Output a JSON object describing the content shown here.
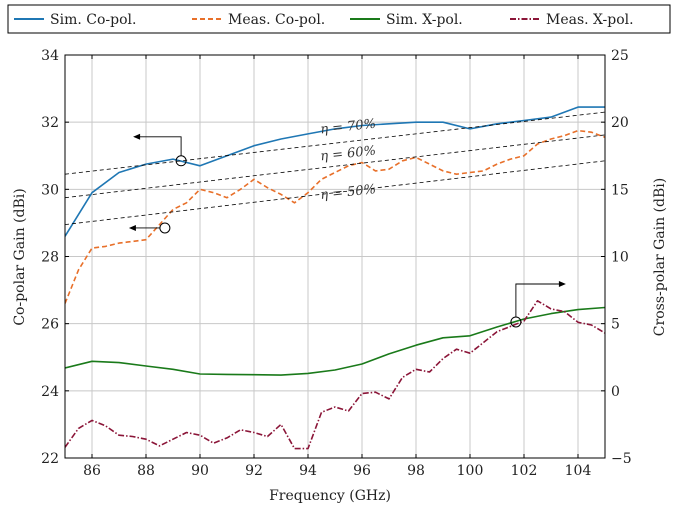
{
  "chart_data": {
    "type": "line",
    "xlabel": "Frequency (GHz)",
    "ylabel_left": "Co-polar Gain (dBi)",
    "ylabel_right": "Cross-polar Gain (dBi)",
    "xlim": [
      85,
      105
    ],
    "ylim_left": [
      22,
      34
    ],
    "ylim_right": [
      -5,
      25
    ],
    "x_ticks": [
      "86",
      "88",
      "90",
      "92",
      "94",
      "96",
      "98",
      "100",
      "102",
      "104"
    ],
    "y_left_ticks": [
      "22",
      "24",
      "26",
      "28",
      "30",
      "32",
      "34"
    ],
    "y_right_ticks": [
      "−5",
      "0",
      "5",
      "10",
      "15",
      "20",
      "25"
    ],
    "grid": true,
    "legend_position": "top",
    "series": [
      {
        "name": "Sim. Co-pol.",
        "axis": "left",
        "color": "#1f77b4",
        "dash": "solid",
        "x": [
          85,
          86,
          87,
          88,
          89,
          90,
          91,
          92,
          93,
          94,
          95,
          96,
          97,
          98,
          99,
          100,
          101,
          102,
          103,
          104,
          105
        ],
        "y": [
          28.6,
          29.9,
          30.5,
          30.75,
          30.9,
          30.7,
          31.0,
          31.3,
          31.5,
          31.65,
          31.8,
          31.9,
          31.95,
          32.0,
          32.0,
          31.8,
          31.95,
          32.05,
          32.15,
          32.45,
          32.45
        ]
      },
      {
        "name": "Meas. Co-pol.",
        "axis": "left",
        "color": "#e8702a",
        "dash": "dashed",
        "x": [
          85,
          85.5,
          86,
          86.5,
          87,
          87.5,
          88,
          88.5,
          89,
          89.5,
          90,
          90.5,
          91,
          91.5,
          92,
          92.5,
          93,
          93.5,
          94,
          94.5,
          95,
          95.5,
          96,
          96.5,
          97,
          97.5,
          98,
          98.5,
          99,
          99.5,
          100,
          100.5,
          101,
          101.5,
          102,
          102.5,
          103,
          103.5,
          104,
          104.5,
          105
        ],
        "y": [
          26.6,
          27.6,
          28.25,
          28.3,
          28.4,
          28.45,
          28.5,
          28.95,
          29.4,
          29.6,
          30.0,
          29.9,
          29.75,
          30.0,
          30.3,
          30.05,
          29.85,
          29.6,
          29.9,
          30.3,
          30.5,
          30.7,
          30.8,
          30.55,
          30.6,
          30.85,
          30.95,
          30.75,
          30.55,
          30.45,
          30.5,
          30.55,
          30.75,
          30.9,
          31.0,
          31.35,
          31.5,
          31.6,
          31.75,
          31.7,
          31.55
        ]
      },
      {
        "name": "Sim. X-pol.",
        "axis": "right",
        "color": "#1a7a1a",
        "dash": "solid",
        "x": [
          85,
          86,
          87,
          88,
          89,
          90,
          91,
          92,
          93,
          94,
          95,
          96,
          97,
          98,
          99,
          100,
          101,
          102,
          103,
          104,
          105
        ],
        "y": [
          1.7,
          2.2,
          2.1,
          1.85,
          1.6,
          1.25,
          1.22,
          1.2,
          1.17,
          1.3,
          1.55,
          2.0,
          2.75,
          3.4,
          3.95,
          4.1,
          4.75,
          5.35,
          5.75,
          6.05,
          6.2
        ]
      },
      {
        "name": "Meas. X-pol.",
        "axis": "right",
        "color": "#8b1538",
        "dash": "dashdot",
        "x": [
          85,
          85.5,
          86,
          86.5,
          87,
          87.5,
          88,
          88.5,
          89,
          89.5,
          90,
          90.5,
          91,
          91.5,
          92,
          92.5,
          93,
          93.5,
          94,
          94.5,
          95,
          95.5,
          96,
          96.5,
          97,
          97.5,
          98,
          98.5,
          99,
          99.5,
          100,
          100.5,
          101,
          101.5,
          102,
          102.5,
          103,
          103.5,
          104,
          104.5,
          105
        ],
        "y": [
          -4.2,
          -2.8,
          -2.2,
          -2.6,
          -3.3,
          -3.4,
          -3.6,
          -4.1,
          -3.6,
          -3.1,
          -3.3,
          -3.9,
          -3.5,
          -2.9,
          -3.1,
          -3.4,
          -2.5,
          -4.3,
          -4.3,
          -1.6,
          -1.2,
          -1.5,
          -0.2,
          -0.1,
          -0.6,
          1.0,
          1.6,
          1.4,
          2.4,
          3.1,
          2.8,
          3.6,
          4.4,
          4.8,
          5.2,
          6.7,
          6.1,
          5.9,
          5.1,
          4.9,
          4.3
        ]
      },
      {
        "name": "η = 70%",
        "axis": "left",
        "color": "#000000",
        "dash": "thin-dashed",
        "x": [
          85,
          105
        ],
        "y": [
          30.45,
          32.3
        ]
      },
      {
        "name": "η = 60%",
        "axis": "left",
        "color": "#000000",
        "dash": "thin-dashed",
        "x": [
          85,
          105
        ],
        "y": [
          29.75,
          31.62
        ]
      },
      {
        "name": "η = 50%",
        "axis": "left",
        "color": "#000000",
        "dash": "thin-dashed",
        "x": [
          85,
          105
        ],
        "y": [
          28.95,
          30.85
        ]
      }
    ],
    "legend": [
      "Sim. Co-pol.",
      "Meas. Co-pol.",
      "Sim. X-pol.",
      "Meas. X-pol."
    ],
    "annotations": [
      {
        "text": "η = 70%",
        "x": 95.5,
        "y": 31.75
      },
      {
        "text": "η = 60%",
        "x": 95.5,
        "y": 30.95
      },
      {
        "text": "η = 50%",
        "x": 95.5,
        "y": 29.8
      }
    ],
    "axis_pointers": [
      {
        "series": "Sim. Co-pol.",
        "x": 89.3,
        "y": 30.85,
        "axis": "left",
        "direction": "left"
      },
      {
        "series": "Meas. Co-pol.",
        "x": 88.7,
        "y": 28.85,
        "axis": "left",
        "direction": "left"
      },
      {
        "series": "Sim. X-pol.",
        "x": 101.7,
        "y": 26.05,
        "axis": "right",
        "direction": "right"
      }
    ]
  }
}
